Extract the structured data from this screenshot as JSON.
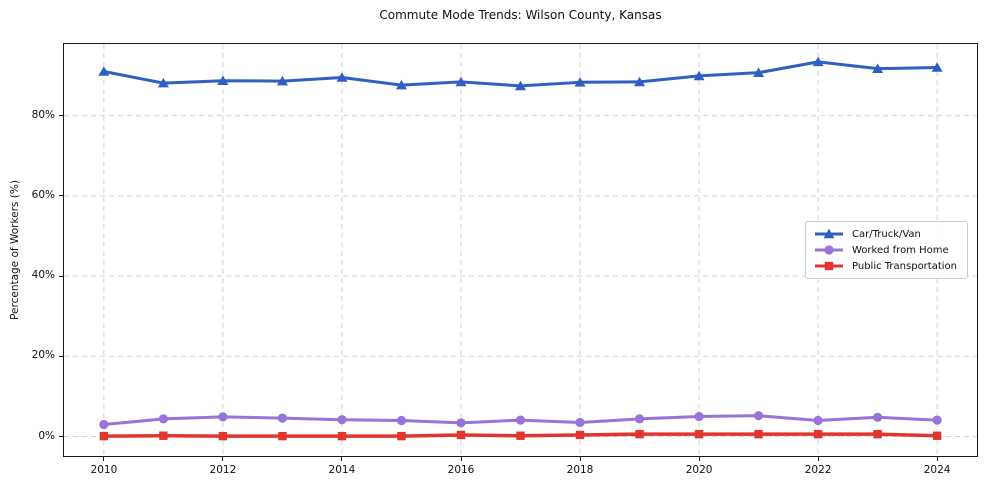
{
  "chart_data": {
    "type": "line",
    "title": "Commute Mode Trends: Wilson County, Kansas",
    "xlabel": "",
    "ylabel": "Percentage of Workers (%)",
    "x": [
      2010,
      2011,
      2012,
      2013,
      2014,
      2015,
      2016,
      2017,
      2018,
      2019,
      2020,
      2021,
      2022,
      2023,
      2024
    ],
    "series": [
      {
        "name": "Car/Truck/Van",
        "color": "#305fc4",
        "marker": "triangle",
        "line_width": 3,
        "values": [
          91.0,
          88.1,
          88.7,
          88.6,
          89.5,
          87.6,
          88.4,
          87.4,
          88.3,
          88.4,
          89.9,
          90.7,
          93.4,
          91.7,
          92.0
        ]
      },
      {
        "name": "Worked from Home",
        "color": "#9873d8",
        "marker": "circle",
        "line_width": 3,
        "values": [
          3.0,
          4.4,
          4.9,
          4.6,
          4.2,
          4.0,
          3.4,
          4.1,
          3.5,
          4.4,
          5.0,
          5.2,
          4.0,
          4.8,
          4.1
        ]
      },
      {
        "name": "Public Transportation",
        "color": "#e0362f",
        "marker": "square",
        "line_width": 3.5,
        "values": [
          0.1,
          0.2,
          0.1,
          0.1,
          0.1,
          0.1,
          0.4,
          0.2,
          0.4,
          0.6,
          0.6,
          0.6,
          0.6,
          0.6,
          0.2
        ]
      }
    ],
    "x_ticks": [
      2010,
      2012,
      2014,
      2016,
      2018,
      2020,
      2022,
      2024
    ],
    "x_tick_labels": [
      "2010",
      "2012",
      "2014",
      "2016",
      "2018",
      "2020",
      "2022",
      "2024"
    ],
    "y_ticks": [
      0,
      20,
      40,
      60,
      80
    ],
    "y_tick_labels": [
      "0%",
      "20%",
      "40%",
      "60%",
      "80%"
    ],
    "xlim": [
      2009.33,
      2024.67
    ],
    "ylim": [
      -4.85,
      97.85
    ],
    "grid": true,
    "legend_position": "center-right"
  },
  "palette": {
    "background": "#ffffff",
    "grid": "#d3d3d3",
    "spine": "#1a1a1a",
    "text": "#111111",
    "legend_border": "#cccccc"
  }
}
